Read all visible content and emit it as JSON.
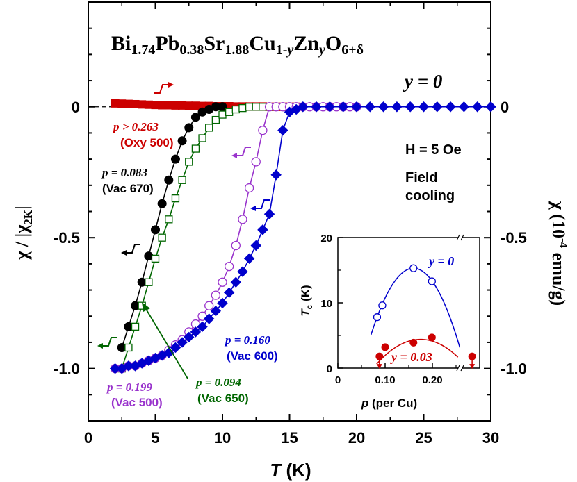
{
  "chart_data": {
    "type": "scatter",
    "title": {
      "formula_parts": [
        "Bi",
        "1.74",
        "Pb",
        "0.38",
        "Sr",
        "1.88",
        "Cu",
        "1-",
        "y",
        "Zn",
        "y",
        "O",
        "6+δ"
      ]
    },
    "xlabel": {
      "italic": "T",
      "rest": " (K)"
    },
    "ylabel_left": {
      "chi": "χ / |χ",
      "sub": "2K",
      "end": "|"
    },
    "ylabel_right": {
      "chi": "χ (10",
      "sup": "-4",
      "end": " emu/g)"
    },
    "xlim": [
      0,
      30
    ],
    "ylim": [
      -1.2,
      0.4
    ],
    "x_ticks": [
      "0",
      "5",
      "10",
      "15",
      "20",
      "25",
      "30"
    ],
    "y_ticks_left": [
      {
        "v": 0,
        "t": "0"
      },
      {
        "v": -0.5,
        "t": "-0.5"
      },
      {
        "v": -1.0,
        "t": "-1.0"
      }
    ],
    "y_ticks_right": [
      {
        "v": 0,
        "t": "0"
      },
      {
        "v": -0.5,
        "t": "-0.5"
      },
      {
        "v": -1.0,
        "t": "-1.0"
      }
    ],
    "annotations": {
      "y_eq": "y = 0",
      "field": "H = 5 Oe",
      "field_cooling_1": "Field",
      "field_cooling_2": "cooling"
    },
    "series": [
      {
        "name": "p > 0.263 (Oxy 500)",
        "p_label": "p > 0.263",
        "sample": "(Oxy 500)",
        "color": "#cc0000",
        "marker": "square-filled",
        "x": [
          2.0,
          2.5,
          3.0,
          3.5,
          4.0,
          4.5,
          5.0,
          5.5,
          6.0,
          6.5,
          7.0,
          7.5,
          8.0,
          8.5,
          9.0,
          9.5,
          10.0,
          10.5,
          11.0,
          11.5,
          12.0,
          12.5,
          13.0,
          13.5,
          14.0,
          14.5,
          15.0,
          15.5
        ],
        "y": [
          0.013,
          0.012,
          0.011,
          0.01,
          0.009,
          0.008,
          0.007,
          0.006,
          0.006,
          0.005,
          0.005,
          0.004,
          0.004,
          0.003,
          0.003,
          0.002,
          0.002,
          0.002,
          0.001,
          0.001,
          0.001,
          0.001,
          0.001,
          0.0,
          0.0,
          0.0,
          0.0,
          0.0
        ]
      },
      {
        "name": "p = 0.083 (Vac 670)",
        "p_label": "p = 0.083",
        "sample": "(Vac 670)",
        "color": "#000000",
        "marker": "circle-filled",
        "x": [
          2.5,
          3.0,
          3.5,
          4.0,
          4.5,
          5.0,
          5.5,
          6.0,
          6.5,
          7.0,
          7.5,
          8.0,
          8.5,
          9.0,
          9.5,
          10.0
        ],
        "y": [
          -0.92,
          -0.84,
          -0.76,
          -0.67,
          -0.57,
          -0.47,
          -0.37,
          -0.28,
          -0.2,
          -0.13,
          -0.08,
          -0.04,
          -0.02,
          -0.01,
          0.0,
          0.0
        ]
      },
      {
        "name": "p = 0.094 (Vac 650)",
        "p_label": "p = 0.094",
        "sample": "(Vac 650)",
        "color": "#006600",
        "marker": "square-open",
        "x": [
          2.5,
          3.0,
          3.5,
          4.0,
          4.5,
          5.0,
          5.5,
          6.0,
          6.5,
          7.0,
          7.5,
          8.0,
          8.5,
          9.0,
          9.5,
          10.0,
          10.5,
          11.0,
          11.5,
          12.0,
          12.5,
          13.0,
          13.5
        ],
        "y": [
          -1.0,
          -0.92,
          -0.84,
          -0.76,
          -0.67,
          -0.58,
          -0.5,
          -0.43,
          -0.35,
          -0.28,
          -0.21,
          -0.16,
          -0.12,
          -0.08,
          -0.05,
          -0.03,
          -0.02,
          -0.01,
          -0.005,
          0.0,
          0.0,
          0.0,
          0.0
        ]
      },
      {
        "name": "p = 0.199 (Vac 500)",
        "p_label": "p = 0.199",
        "sample": "(Vac 500)",
        "color": "#9933cc",
        "marker": "circle-open",
        "x": [
          2.0,
          2.5,
          3.0,
          3.5,
          4.0,
          4.5,
          5.0,
          5.5,
          6.0,
          6.5,
          7.0,
          7.5,
          8.0,
          8.5,
          9.0,
          9.5,
          10.0,
          10.5,
          11.0,
          11.5,
          12.0,
          12.5,
          13.0,
          13.5,
          14.0,
          14.5,
          15.0,
          15.5,
          16.0,
          16.5,
          17.0,
          17.5,
          18.0,
          18.5,
          19.0,
          19.5,
          20.0
        ],
        "y": [
          -1.0,
          -1.0,
          -0.99,
          -0.99,
          -0.98,
          -0.97,
          -0.96,
          -0.95,
          -0.93,
          -0.91,
          -0.89,
          -0.86,
          -0.83,
          -0.8,
          -0.76,
          -0.72,
          -0.67,
          -0.61,
          -0.53,
          -0.43,
          -0.31,
          -0.21,
          -0.09,
          -0.0,
          0.0,
          0.0,
          0.0,
          0.0,
          0.0,
          0.0,
          0.0,
          0.0,
          0.0,
          0.0,
          0.0,
          0.0,
          0.0
        ]
      },
      {
        "name": "p = 0.160 (Vac 600)",
        "p_label": "p = 0.160",
        "sample": "(Vac 600)",
        "color": "#0000cc",
        "marker": "diamond-filled",
        "x": [
          2.0,
          2.5,
          3.0,
          3.5,
          4.0,
          4.5,
          5.0,
          5.5,
          6.0,
          6.5,
          7.0,
          7.5,
          8.0,
          8.5,
          9.0,
          9.5,
          10.0,
          10.5,
          11.0,
          11.5,
          12.0,
          12.5,
          13.0,
          13.5,
          14.0,
          14.5,
          15.0,
          15.5,
          16.0,
          17.0,
          18.0,
          19.0,
          20.0,
          21.0,
          22.0,
          23.0,
          24.0,
          25.0,
          26.0,
          27.0,
          28.0,
          29.0,
          30.0
        ],
        "y": [
          -1.0,
          -1.0,
          -0.99,
          -0.99,
          -0.98,
          -0.97,
          -0.96,
          -0.95,
          -0.94,
          -0.92,
          -0.9,
          -0.88,
          -0.86,
          -0.84,
          -0.81,
          -0.78,
          -0.75,
          -0.71,
          -0.67,
          -0.63,
          -0.58,
          -0.53,
          -0.47,
          -0.41,
          -0.26,
          -0.09,
          -0.02,
          -0.01,
          0.0,
          0.0,
          0.0,
          0.0,
          0.0,
          0.0,
          0.0,
          0.0,
          0.0,
          0.0,
          0.0,
          0.0,
          0.0,
          0.0,
          0.0
        ]
      }
    ],
    "inset": {
      "xlabel_italic": "p",
      "xlabel_rest": " (per Cu)",
      "ylabel_italic": "T",
      "ylabel_sub": "c",
      "ylabel_rest": " (K)",
      "xlim": [
        0,
        0.3
      ],
      "ylim": [
        0,
        20
      ],
      "x_ticks": [
        {
          "v": 0,
          "t": "0"
        },
        {
          "v": 0.1,
          "t": "0.10"
        },
        {
          "v": 0.2,
          "t": "0.20"
        }
      ],
      "y_ticks": [
        {
          "v": 0,
          "t": "0"
        },
        {
          "v": 10,
          "t": "10"
        },
        {
          "v": 20,
          "t": "20"
        }
      ],
      "series": [
        {
          "name": "y = 0",
          "color": "#0000cc",
          "marker": "circle-open",
          "p": [
            0.083,
            0.094,
            0.16,
            0.199
          ],
          "Tc": [
            7.8,
            9.6,
            15.3,
            13.3
          ]
        },
        {
          "name": "y = 0.03",
          "color": "#cc0000",
          "marker": "circle-filled",
          "p": [
            0.088,
            0.1,
            0.16,
            0.199
          ],
          "Tc": [
            1.8,
            3.2,
            3.9,
            4.7
          ]
        }
      ]
    }
  }
}
